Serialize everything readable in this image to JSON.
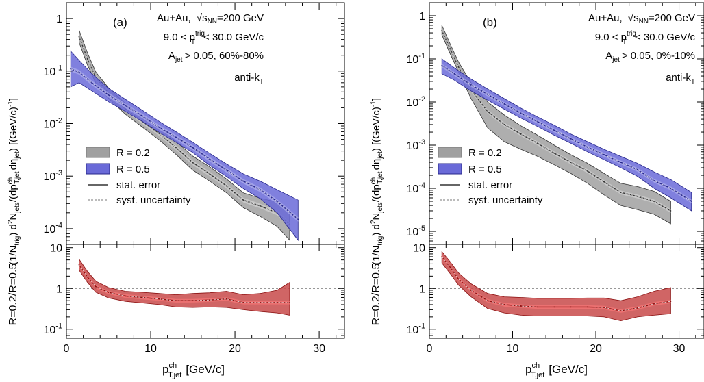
{
  "colors": {
    "r02_band": "#a0a0a0",
    "r02_line": "#333333",
    "r05_band": "#6a6ad8",
    "r05_line": "#26268a",
    "ratio_band": "#c84a4a",
    "ratio_line": "#8a1010",
    "ratio_stat": "#ff7a7a"
  },
  "legend": {
    "r02": "R = 0.2",
    "r05": "R = 0.5",
    "stat": "stat. error",
    "syst": "syst. uncertainty"
  },
  "x_axis": {
    "label_main": "p",
    "label_sup": "ch",
    "label_sub": "T,jet",
    "label_unit": "[GeV/c]",
    "ticks": [
      "0",
      "10",
      "20",
      "30"
    ]
  },
  "top_axis": {
    "ticks": [
      {
        "v": 1,
        "base": "1",
        "exp": ""
      },
      {
        "v": 0.1,
        "base": "10",
        "exp": "-1"
      },
      {
        "v": 0.01,
        "base": "10",
        "exp": "-2"
      },
      {
        "v": 0.001,
        "base": "10",
        "exp": "-3"
      },
      {
        "v": 0.0001,
        "base": "10",
        "exp": "-4"
      },
      {
        "v": 1e-05,
        "base": "10",
        "exp": "-5"
      }
    ],
    "ylabel_a": "(1/N",
    "ylabel_a_sub": "trig",
    "ylabel_b": ") d",
    "ylabel_b_sup": "2",
    "ylabel_c": "N",
    "ylabel_c_sub": "jets",
    "ylabel_d": "/(dp",
    "ylabel_d_sup": "ch",
    "ylabel_d_sub": "T,jet",
    "ylabel_e": "dη",
    "ylabel_e_sub": "jet",
    "ylabel_f": ")   [(GeV/c)",
    "ylabel_f_sup": "-1",
    "ylabel_g": "]"
  },
  "ratio_axis": {
    "ylabel": "R=0.2/R=0.5",
    "ticks": [
      {
        "v": 10,
        "base": "10",
        "exp": ""
      },
      {
        "v": 1,
        "base": "1",
        "exp": ""
      },
      {
        "v": 0.1,
        "base": "10",
        "exp": "-1"
      }
    ]
  },
  "panels": [
    {
      "tag": "(a)",
      "system": "Au+Au,",
      "sqrt_sym": "√",
      "sqrt_arg": "s",
      "sqrt_sub": "NN",
      "energy": "=200 GeV",
      "trig_a": "9.0 < p",
      "trig_sup": "trig",
      "trig_sub": "T",
      "trig_b": "< 30.0 GeV/c",
      "ajet_a": "A",
      "ajet_sub": "jet",
      "ajet_b": "> 0.05, 60%-80%",
      "algo_a": "anti-k",
      "algo_sub": "T"
    },
    {
      "tag": "(b)",
      "system": "Au+Au,",
      "sqrt_sym": "√",
      "sqrt_arg": "s",
      "sqrt_sub": "NN",
      "energy": "=200 GeV",
      "trig_a": "9.0 < p",
      "trig_sup": "trig",
      "trig_sub": "T",
      "trig_b": "< 30.0 GeV/c",
      "ajet_a": "A",
      "ajet_sub": "jet",
      "ajet_b": "> 0.05, 0%-10%",
      "algo_a": "anti-k",
      "algo_sub": "T"
    }
  ],
  "chart_data": [
    {
      "type": "line",
      "panel": "(a)",
      "xlim": [
        0,
        33
      ],
      "ylim": [
        5e-05,
        2
      ],
      "yscale": "log",
      "xlabel": "p_T,jet^ch [GeV/c]",
      "ylabel": "(1/N_trig) d2N_jets/(dp_T,jet^ch dη_jet) [(GeV/c)^-1]",
      "series": [
        {
          "name": "R = 0.2",
          "x": [
            1.5,
            2.5,
            3.5,
            5,
            7,
            9,
            11,
            13,
            15,
            17,
            19,
            21,
            23,
            25,
            26.5
          ],
          "y": [
            0.45,
            0.17,
            0.075,
            0.038,
            0.019,
            0.011,
            0.0065,
            0.0035,
            0.0018,
            0.0011,
            0.00065,
            0.00035,
            0.00027,
            0.0002,
            0.00012
          ],
          "syst_low": [
            0.35,
            0.13,
            0.058,
            0.03,
            0.015,
            0.0086,
            0.0049,
            0.0026,
            0.0013,
            0.0008,
            0.00048,
            0.00025,
            0.00017,
            0.00011,
            6e-05
          ],
          "syst_high": [
            0.6,
            0.22,
            0.095,
            0.048,
            0.024,
            0.014,
            0.0083,
            0.0046,
            0.0024,
            0.0015,
            0.00088,
            0.00048,
            0.00038,
            0.00032,
            0.0002
          ]
        },
        {
          "name": "R = 0.5",
          "x": [
            0.5,
            1.5,
            3,
            5,
            7,
            9,
            11,
            13,
            15,
            17,
            19,
            21,
            23,
            25,
            27.5
          ],
          "y": [
            0.11,
            0.095,
            0.06,
            0.035,
            0.022,
            0.014,
            0.0085,
            0.0055,
            0.0035,
            0.0021,
            0.0013,
            0.0008,
            0.00055,
            0.00033,
            0.00015
          ],
          "syst_low": [
            0.05,
            0.06,
            0.042,
            0.026,
            0.017,
            0.011,
            0.0068,
            0.0044,
            0.0028,
            0.0016,
            0.00098,
            0.00058,
            0.00037,
            0.0002,
            6e-05
          ],
          "syst_high": [
            0.24,
            0.16,
            0.09,
            0.047,
            0.029,
            0.018,
            0.011,
            0.007,
            0.0044,
            0.0027,
            0.0017,
            0.0011,
            0.0008,
            0.00055,
            0.00035
          ]
        }
      ]
    },
    {
      "type": "line",
      "panel": "(b)",
      "xlim": [
        0,
        33
      ],
      "ylim": [
        5e-06,
        2
      ],
      "yscale": "log",
      "xlabel": "p_T,jet^ch [GeV/c]",
      "ylabel": "(1/N_trig) d2N_jets/(dp_T,jet^ch dη_jet) [(GeV/c)^-1]",
      "series": [
        {
          "name": "R = 0.2",
          "x": [
            1.5,
            2.5,
            3.5,
            5,
            7,
            9,
            11,
            13,
            15,
            17,
            19,
            21,
            23,
            25,
            27,
            29
          ],
          "y": [
            0.45,
            0.17,
            0.065,
            0.019,
            0.006,
            0.003,
            0.0018,
            0.0011,
            0.00065,
            0.0004,
            0.00025,
            0.00014,
            8e-05,
            6.5e-05,
            5e-05,
            3e-05
          ],
          "syst_low": [
            0.36,
            0.13,
            0.05,
            0.012,
            0.0025,
            0.0012,
            0.0008,
            0.00055,
            0.00035,
            0.00022,
            0.00013,
            7e-05,
            4e-05,
            3.2e-05,
            2.5e-05,
            1.5e-05
          ],
          "syst_high": [
            0.6,
            0.22,
            0.085,
            0.028,
            0.01,
            0.005,
            0.0028,
            0.0017,
            0.001,
            0.0006,
            0.00038,
            0.00022,
            0.00013,
            0.00011,
            8.5e-05,
            5e-05
          ]
        },
        {
          "name": "R = 0.5",
          "x": [
            1.5,
            3,
            5,
            7,
            9,
            11,
            13,
            15,
            17,
            19,
            21,
            23,
            25,
            27,
            29,
            31.5
          ],
          "y": [
            0.07,
            0.045,
            0.025,
            0.015,
            0.009,
            0.0055,
            0.0035,
            0.0022,
            0.0014,
            0.0009,
            0.0006,
            0.0004,
            0.00027,
            0.00015,
            0.0001,
            5e-05
          ],
          "syst_low": [
            0.045,
            0.032,
            0.018,
            0.011,
            0.0068,
            0.0042,
            0.0027,
            0.0017,
            0.0011,
            0.0007,
            0.00046,
            0.0003,
            0.00019,
            0.0001,
            6e-05,
            3e-05
          ],
          "syst_high": [
            0.1,
            0.062,
            0.034,
            0.02,
            0.012,
            0.0072,
            0.0045,
            0.0029,
            0.0018,
            0.0012,
            0.0008,
            0.00055,
            0.00038,
            0.00024,
            0.00016,
            8e-05
          ]
        }
      ]
    },
    {
      "type": "line",
      "panel": "(a) ratio",
      "xlim": [
        0,
        33
      ],
      "ylim": [
        0.06,
        12
      ],
      "yscale": "log",
      "ylabel": "R=0.2/R=0.5",
      "reference_line": 1,
      "series": [
        {
          "name": "R=0.2/R=0.5",
          "x": [
            1.5,
            2.5,
            3.5,
            5,
            7,
            9,
            11,
            13,
            15,
            17,
            19,
            21,
            23,
            25,
            26.5
          ],
          "y": [
            3.8,
            1.9,
            1.1,
            0.8,
            0.65,
            0.6,
            0.55,
            0.5,
            0.5,
            0.52,
            0.55,
            0.45,
            0.45,
            0.45,
            0.45
          ],
          "syst_low": [
            2.8,
            1.4,
            0.8,
            0.58,
            0.48,
            0.44,
            0.4,
            0.35,
            0.34,
            0.35,
            0.34,
            0.3,
            0.27,
            0.25,
            0.22
          ],
          "syst_high": [
            5.2,
            2.6,
            1.5,
            1.05,
            0.85,
            0.8,
            0.75,
            0.7,
            0.75,
            0.78,
            0.85,
            0.7,
            0.75,
            0.9,
            1.4
          ]
        }
      ]
    },
    {
      "type": "line",
      "panel": "(b) ratio",
      "xlim": [
        0,
        33
      ],
      "ylim": [
        0.06,
        12
      ],
      "yscale": "log",
      "ylabel": "R=0.2/R=0.5",
      "reference_line": 1,
      "series": [
        {
          "name": "R=0.2/R=0.5",
          "x": [
            1.5,
            2.5,
            3.5,
            5,
            7,
            9,
            11,
            13,
            15,
            17,
            19,
            21,
            23,
            25,
            27,
            29
          ],
          "y": [
            6.0,
            3.3,
            1.7,
            0.9,
            0.5,
            0.4,
            0.37,
            0.35,
            0.35,
            0.35,
            0.35,
            0.34,
            0.28,
            0.33,
            0.42,
            0.48
          ],
          "syst_low": [
            4.2,
            2.3,
            1.2,
            0.62,
            0.32,
            0.25,
            0.22,
            0.21,
            0.21,
            0.21,
            0.21,
            0.2,
            0.16,
            0.2,
            0.22,
            0.24
          ],
          "syst_high": [
            8.0,
            4.5,
            2.4,
            1.3,
            0.75,
            0.62,
            0.6,
            0.57,
            0.57,
            0.57,
            0.58,
            0.58,
            0.5,
            0.62,
            0.85,
            1.05
          ]
        }
      ]
    }
  ]
}
